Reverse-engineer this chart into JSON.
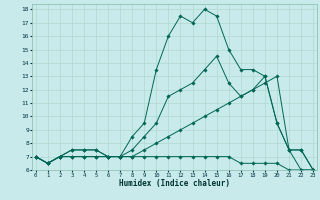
{
  "xlabel": "Humidex (Indice chaleur)",
  "background_color": "#c8eaea",
  "grid_color": "#b0d8d0",
  "line_color": "#006655",
  "x_all": [
    0,
    1,
    2,
    3,
    4,
    5,
    6,
    7,
    8,
    9,
    10,
    11,
    12,
    13,
    14,
    15,
    16,
    17,
    18,
    19,
    20,
    21,
    22,
    23
  ],
  "series": [
    [
      7,
      6.5,
      7,
      7.5,
      7.5,
      7.5,
      7,
      7,
      8.5,
      9.5,
      13.5,
      16,
      17.5,
      17,
      18,
      17.5,
      15,
      13.5,
      13.5,
      13,
      9.5,
      7.5,
      7.5,
      6
    ],
    [
      7,
      6.5,
      7,
      7.5,
      7.5,
      7.5,
      7,
      7,
      7.5,
      8.5,
      9.5,
      11.5,
      12,
      12.5,
      13.5,
      14.5,
      12.5,
      11.5,
      12,
      13,
      9.5,
      7.5,
      7.5,
      6
    ],
    [
      7,
      6.5,
      7,
      7,
      7,
      7,
      7,
      7,
      7,
      7.5,
      8,
      8.5,
      9,
      9.5,
      10,
      10.5,
      11,
      11.5,
      12,
      12.5,
      13,
      7.5,
      6,
      6
    ],
    [
      7,
      6.5,
      7,
      7,
      7,
      7,
      7,
      7,
      7,
      7,
      7,
      7,
      7,
      7,
      7,
      7,
      7,
      6.5,
      6.5,
      6.5,
      6.5,
      6,
      6,
      6
    ]
  ],
  "ylim": [
    6,
    18.4
  ],
  "xlim": [
    -0.3,
    23.3
  ],
  "yticks": [
    6,
    7,
    8,
    9,
    10,
    11,
    12,
    13,
    14,
    15,
    16,
    17,
    18
  ],
  "xticks": [
    0,
    1,
    2,
    3,
    4,
    5,
    6,
    7,
    8,
    9,
    10,
    11,
    12,
    13,
    14,
    15,
    16,
    17,
    18,
    19,
    20,
    21,
    22,
    23
  ]
}
